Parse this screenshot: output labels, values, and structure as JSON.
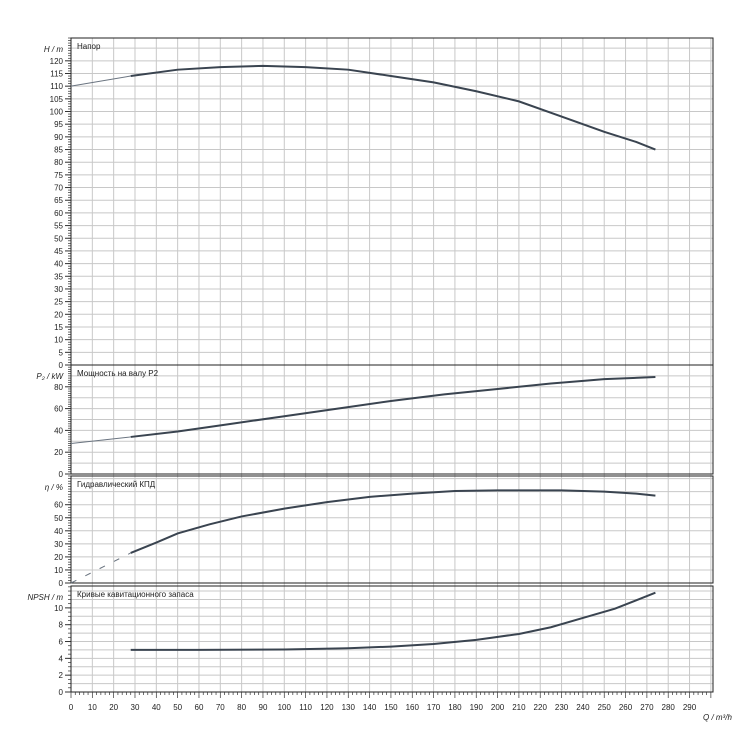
{
  "chart_data": {
    "type": "line",
    "xlabel": "Q / m³/h",
    "xlim": [
      0,
      301
    ],
    "xticks": [
      0,
      10,
      20,
      30,
      40,
      50,
      60,
      70,
      80,
      90,
      100,
      110,
      120,
      130,
      140,
      150,
      160,
      170,
      180,
      190,
      200,
      210,
      220,
      230,
      240,
      250,
      260,
      270,
      280,
      290
    ],
    "grid": true,
    "line_color": "#3a4450",
    "panels": [
      {
        "ylabel": "H / m",
        "title": "Напор",
        "ylim": [
          0,
          129
        ],
        "yticks": [
          0,
          5,
          10,
          15,
          20,
          25,
          30,
          35,
          40,
          45,
          50,
          55,
          60,
          65,
          70,
          75,
          80,
          85,
          90,
          95,
          100,
          105,
          110,
          115,
          120
        ],
        "grid_step": 5,
        "extrapolated": {
          "x": [
            0,
            28
          ],
          "y": [
            110,
            114
          ]
        },
        "x": [
          28,
          50,
          70,
          90,
          110,
          130,
          150,
          170,
          190,
          210,
          230,
          250,
          265,
          274
        ],
        "y": [
          114,
          116.5,
          117.5,
          118,
          117.5,
          116.5,
          114,
          111.5,
          108,
          104,
          98,
          92,
          88,
          85
        ]
      },
      {
        "ylabel": "P₂ / kW",
        "title": "Мощность на валу P2",
        "ylim": [
          0,
          100
        ],
        "yticks": [
          0,
          20,
          40,
          60,
          80
        ],
        "grid_step": 10,
        "extrapolated": {
          "x": [
            0,
            28
          ],
          "y": [
            28,
            34
          ]
        },
        "x": [
          28,
          50,
          75,
          100,
          125,
          150,
          175,
          200,
          225,
          250,
          274
        ],
        "y": [
          34,
          39,
          46,
          53,
          60,
          67,
          73,
          78,
          83,
          87,
          89
        ]
      },
      {
        "ylabel": "η / %",
        "title": "Гидравлический КПД",
        "ylim": [
          0,
          82
        ],
        "yticks": [
          0,
          10,
          20,
          30,
          40,
          50,
          60
        ],
        "grid_step": 10,
        "extrapolated": {
          "x": [
            0,
            28
          ],
          "y": [
            0,
            23
          ]
        },
        "x": [
          28,
          40,
          50,
          65,
          80,
          100,
          120,
          140,
          160,
          180,
          200,
          230,
          250,
          265,
          274
        ],
        "y": [
          23,
          31,
          38,
          45,
          51,
          57,
          62,
          66,
          68.5,
          70.5,
          71,
          71,
          70,
          68.5,
          67
        ]
      },
      {
        "ylabel": "NPSH / m",
        "title": "Кривые кавитационного запаса",
        "ylim": [
          0,
          12.6
        ],
        "yticks": [
          0,
          2,
          4,
          6,
          8,
          10
        ],
        "grid_step": 1,
        "x": [
          28,
          60,
          100,
          130,
          150,
          170,
          190,
          210,
          225,
          240,
          255,
          265,
          274
        ],
        "y": [
          5,
          5,
          5.05,
          5.2,
          5.4,
          5.7,
          6.2,
          6.9,
          7.7,
          8.8,
          9.9,
          10.9,
          11.8
        ]
      }
    ]
  }
}
